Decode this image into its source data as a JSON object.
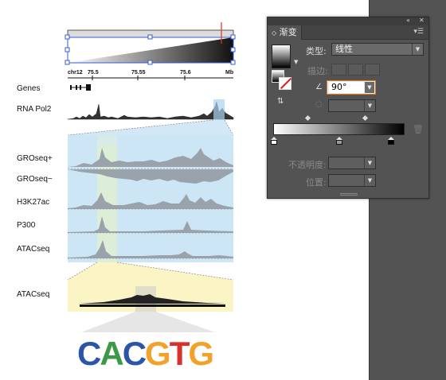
{
  "figure": {
    "axis": {
      "chrom_label": "chr12",
      "ticks": [
        "75.5",
        "75.55",
        "75.6"
      ],
      "unit": "Mb"
    },
    "tracks": [
      "Genes",
      "RNA Pol2",
      "GROseq+",
      "GROseq−",
      "H3K27ac",
      "P300",
      "ATACseq"
    ],
    "zoom_track": "ATACseq",
    "motif": {
      "letters": [
        {
          "char": "C",
          "color": "#2b55a6"
        },
        {
          "char": "A",
          "color": "#3c9a47"
        },
        {
          "char": "C",
          "color": "#2b55a6"
        },
        {
          "char": "G",
          "color": "#f2a12b"
        },
        {
          "char": "T",
          "color": "#d9312b"
        },
        {
          "char": "G",
          "color": "#f2a12b"
        }
      ]
    }
  },
  "panel": {
    "topbar": {
      "collapse": "«",
      "close": "✕"
    },
    "tab_label": "渐变",
    "menu_icon": "menu-icon",
    "type_label": "类型:",
    "type_value": "线性",
    "stroke_label": "描边:",
    "angle_value": "90°",
    "opacity_label": "不透明度:",
    "location_label": "位置:",
    "colors": {
      "panel_bg": "#535353",
      "highlight_border": "#e07a20"
    }
  }
}
